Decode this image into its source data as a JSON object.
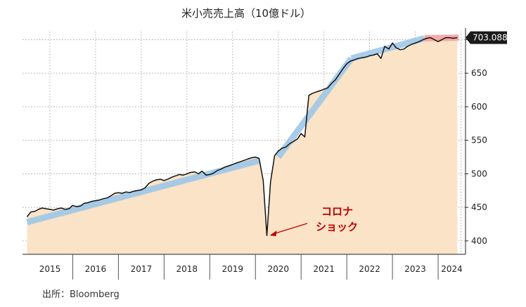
{
  "chart_data": {
    "type": "line",
    "title": "米小売売上高（10億ドル）",
    "source": "出所：Bloomberg",
    "ylim": [
      380,
      712
    ],
    "y_ticks": [
      400,
      450,
      500,
      550,
      600,
      650,
      700
    ],
    "x_range": [
      2014.9,
      2024.6
    ],
    "years": [
      "2015",
      "2016",
      "2017",
      "2018",
      "2019",
      "2020",
      "2021",
      "2022",
      "2023",
      "2024"
    ],
    "last_value_label": "703.088",
    "annotation": {
      "text_lines": [
        "コロナ",
        "ショック"
      ],
      "x": 2020.22,
      "y": 405
    },
    "series": [
      {
        "x": [
          2015.0,
          2015.08,
          2015.17,
          2015.25,
          2015.33,
          2015.42,
          2015.5,
          2015.58,
          2015.67,
          2015.75,
          2015.83,
          2015.92,
          2016.0,
          2016.08,
          2016.17,
          2016.25,
          2016.33,
          2016.42,
          2016.5,
          2016.58,
          2016.67,
          2016.75,
          2016.83,
          2016.92,
          2017.0,
          2017.08,
          2017.17,
          2017.25,
          2017.33,
          2017.42,
          2017.5,
          2017.58,
          2017.67,
          2017.75,
          2017.83,
          2017.92,
          2018.0,
          2018.08,
          2018.17,
          2018.25,
          2018.33,
          2018.42,
          2018.5,
          2018.58,
          2018.67,
          2018.75,
          2018.83,
          2018.92,
          2019.0,
          2019.08,
          2019.17,
          2019.25,
          2019.33,
          2019.42,
          2019.5,
          2019.58,
          2019.67,
          2019.75,
          2019.83,
          2019.92,
          2020.0,
          2020.08,
          2020.17,
          2020.25,
          2020.33,
          2020.42,
          2020.5,
          2020.58,
          2020.67,
          2020.75,
          2020.83,
          2020.92,
          2021.0,
          2021.08,
          2021.17,
          2021.25,
          2021.33,
          2021.42,
          2021.5,
          2021.58,
          2021.67,
          2021.75,
          2021.83,
          2021.92,
          2022.0,
          2022.08,
          2022.17,
          2022.25,
          2022.33,
          2022.42,
          2022.5,
          2022.58,
          2022.67,
          2022.75,
          2022.83,
          2022.92,
          2023.0,
          2023.08,
          2023.17,
          2023.25,
          2023.33,
          2023.42,
          2023.5,
          2023.58,
          2023.67,
          2023.75,
          2023.83,
          2023.92,
          2024.0,
          2024.08,
          2024.17,
          2024.25,
          2024.33,
          2024.42
        ],
        "y": [
          436,
          443,
          444,
          447,
          449,
          448,
          447,
          446,
          448,
          449,
          447,
          448,
          453,
          451,
          452,
          456,
          457,
          459,
          460,
          461,
          463,
          464,
          467,
          471,
          472,
          471,
          473,
          472,
          474,
          475,
          476,
          479,
          486,
          489,
          491,
          492,
          490,
          492,
          495,
          497,
          499,
          498,
          500,
          502,
          503,
          500,
          504,
          498,
          499,
          501,
          505,
          507,
          510,
          512,
          514,
          516,
          518,
          520,
          522,
          524,
          525,
          523,
          490,
          408,
          488,
          527,
          534,
          538,
          540,
          545,
          548,
          552,
          560,
          555,
          617,
          620,
          622,
          624,
          626,
          628,
          635,
          640,
          648,
          657,
          664,
          668,
          670,
          672,
          673,
          674,
          676,
          677,
          679,
          672,
          690,
          686,
          695,
          688,
          685,
          686,
          690,
          693,
          695,
          697,
          700,
          702,
          703,
          700,
          697,
          700,
          703,
          703,
          702,
          703
        ]
      }
    ],
    "trend_segments": [
      {
        "type": "pre-covid",
        "x": [
          2015.0,
          2020.1
        ],
        "y": [
          428,
          520
        ]
      },
      {
        "type": "recovery",
        "x": [
          2020.5,
          2022.1
        ],
        "y": [
          525,
          672
        ]
      },
      {
        "type": "post-recovery",
        "x": [
          2022.1,
          2023.7
        ],
        "y": [
          672,
          702
        ]
      },
      {
        "type": "recent-highlight",
        "x": [
          2023.7,
          2024.45
        ],
        "y": [
          702,
          703
        ]
      }
    ],
    "colors": {
      "area_fill": "#fbe3c8",
      "line": "#111111",
      "trend": "#9ec8e8",
      "recent_band": "#f4a3a3",
      "annotation": "#c00000",
      "label_bg": "#1a1a1a",
      "grid": "#9a9a9a"
    }
  }
}
